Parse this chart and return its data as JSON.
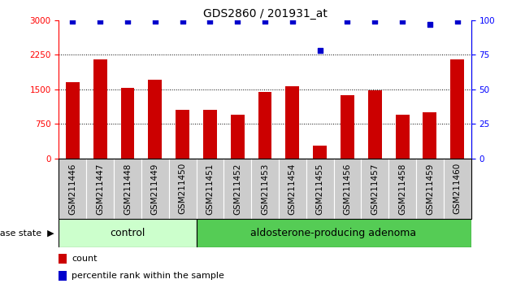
{
  "title": "GDS2860 / 201931_at",
  "samples": [
    "GSM211446",
    "GSM211447",
    "GSM211448",
    "GSM211449",
    "GSM211450",
    "GSM211451",
    "GSM211452",
    "GSM211453",
    "GSM211454",
    "GSM211455",
    "GSM211456",
    "GSM211457",
    "GSM211458",
    "GSM211459",
    "GSM211460"
  ],
  "counts": [
    1650,
    2150,
    1530,
    1700,
    1050,
    1050,
    950,
    1450,
    1570,
    280,
    1380,
    1470,
    950,
    1000,
    2150
  ],
  "percentiles": [
    99,
    99,
    99,
    99,
    99,
    99,
    99,
    99,
    99,
    78,
    99,
    99,
    99,
    97,
    99
  ],
  "control_count": 5,
  "adenoma_count": 10,
  "bar_color": "#cc0000",
  "dot_color": "#0000cc",
  "control_bg": "#ccffcc",
  "adenoma_bg": "#55cc55",
  "label_bg": "#cccccc",
  "yticks_left": [
    0,
    750,
    1500,
    2250,
    3000
  ],
  "yticks_right": [
    0,
    25,
    50,
    75,
    100
  ],
  "ylim_left": [
    0,
    3000
  ],
  "ylim_right": [
    0,
    100
  ],
  "grid_values": [
    750,
    1500,
    2250
  ],
  "legend_count_label": "count",
  "legend_pct_label": "percentile rank within the sample",
  "disease_state_label": "disease state",
  "control_label": "control",
  "adenoma_label": "aldosterone-producing adenoma",
  "title_fontsize": 10,
  "tick_fontsize": 7.5,
  "bar_width": 0.5
}
